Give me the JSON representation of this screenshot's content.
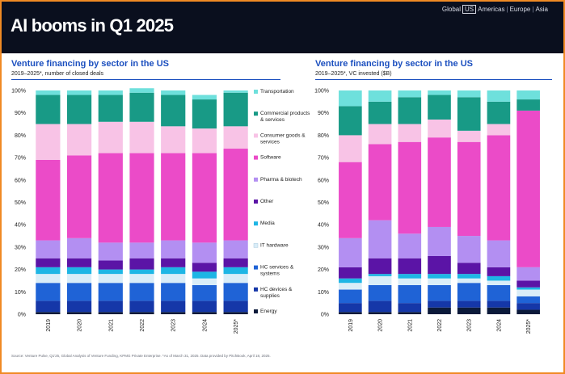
{
  "header": {
    "title": "AI booms in Q1 2025",
    "regions": [
      "Global",
      "US",
      "Americas",
      "Europe",
      "Asia"
    ],
    "selected_region": "US"
  },
  "left_panel": {
    "title": "Venture financing by sector in the US",
    "subtitle": "2019–2025*, number of closed deals"
  },
  "right_panel": {
    "title": "Venture financing by sector in the US",
    "subtitle": "2019–2025*, VC invested ($B)"
  },
  "source": "Source: Venture Pulse, Q1'25, Global Analysis of Venture Funding, KPMG Private Enterprise. *As of March 31, 2025. Data provided by PitchBook, April 18, 2025.",
  "chart_data": [
    {
      "type": "bar",
      "stacked": true,
      "title": "Venture financing by sector in the US",
      "subtitle": "2019–2025*, number of closed deals",
      "categories": [
        "2019",
        "2020",
        "2021",
        "2022",
        "2023",
        "2024",
        "2025*"
      ],
      "ylim": [
        0,
        100
      ],
      "yticks": [
        "0%",
        "10%",
        "20%",
        "30%",
        "40%",
        "50%",
        "60%",
        "70%",
        "80%",
        "90%",
        "100%"
      ],
      "legend_position": "right",
      "series": [
        {
          "name": "Energy",
          "color": "#0b1a3a",
          "values": [
            1,
            1,
            1,
            1,
            1,
            1,
            1
          ]
        },
        {
          "name": "HC devices & supplies",
          "color": "#1537a8",
          "values": [
            5,
            5,
            5,
            5,
            5,
            5,
            5
          ]
        },
        {
          "name": "HC services & systems",
          "color": "#1f63d6",
          "values": [
            8,
            8,
            8,
            8,
            8,
            7,
            8
          ]
        },
        {
          "name": "IT hardware",
          "color": "#d9edf8",
          "values": [
            4,
            4,
            4,
            4,
            4,
            3,
            4
          ]
        },
        {
          "name": "Media",
          "color": "#1eb6e5",
          "values": [
            3,
            3,
            2,
            2,
            3,
            3,
            3
          ]
        },
        {
          "name": "Other",
          "color": "#5b14a6",
          "values": [
            4,
            4,
            4,
            5,
            4,
            4,
            4
          ]
        },
        {
          "name": "Pharma & biotech",
          "color": "#b38ff2",
          "values": [
            8,
            9,
            8,
            7,
            8,
            9,
            8
          ]
        },
        {
          "name": "Software",
          "color": "#eb4bc8",
          "values": [
            36,
            37,
            40,
            40,
            39,
            40,
            41
          ]
        },
        {
          "name": "Consumer goods & services",
          "color": "#f8c3e6",
          "values": [
            16,
            14,
            14,
            14,
            12,
            11,
            10
          ]
        },
        {
          "name": "Commercial products & services",
          "color": "#189a86",
          "values": [
            13,
            13,
            12,
            13,
            14,
            13,
            15
          ]
        },
        {
          "name": "Transportation",
          "color": "#6ee0dc",
          "values": [
            2,
            2,
            2,
            2,
            2,
            2,
            1
          ]
        }
      ]
    },
    {
      "type": "bar",
      "stacked": true,
      "title": "Venture financing by sector in the US",
      "subtitle": "2019–2025*, VC invested ($B)",
      "categories": [
        "2019",
        "2020",
        "2021",
        "2022",
        "2023",
        "2024",
        "2025*"
      ],
      "ylim": [
        0,
        100
      ],
      "yticks": [
        "0%",
        "10%",
        "20%",
        "30%",
        "40%",
        "50%",
        "60%",
        "70%",
        "80%",
        "90%",
        "100%"
      ],
      "series": [
        {
          "name": "Energy",
          "color": "#0b1a3a",
          "values": [
            1,
            1,
            1,
            3,
            3,
            3,
            2
          ]
        },
        {
          "name": "HC devices & supplies",
          "color": "#1537a8",
          "values": [
            4,
            5,
            4,
            3,
            3,
            3,
            3
          ]
        },
        {
          "name": "HC services & systems",
          "color": "#1f63d6",
          "values": [
            6,
            7,
            8,
            7,
            8,
            7,
            3
          ]
        },
        {
          "name": "IT hardware",
          "color": "#d9edf8",
          "values": [
            3,
            4,
            3,
            3,
            2,
            2,
            3
          ]
        },
        {
          "name": "Media",
          "color": "#1eb6e5",
          "values": [
            2,
            1,
            2,
            2,
            2,
            2,
            1
          ]
        },
        {
          "name": "Other",
          "color": "#5b14a6",
          "values": [
            5,
            7,
            7,
            8,
            5,
            4,
            3
          ]
        },
        {
          "name": "Pharma & biotech",
          "color": "#b38ff2",
          "values": [
            13,
            17,
            11,
            13,
            12,
            12,
            6
          ]
        },
        {
          "name": "Software",
          "color": "#eb4bc8",
          "values": [
            34,
            34,
            41,
            40,
            42,
            47,
            70
          ]
        },
        {
          "name": "Consumer goods & services",
          "color": "#f8c3e6",
          "values": [
            12,
            9,
            8,
            8,
            5,
            5,
            0
          ]
        },
        {
          "name": "Commercial products & services",
          "color": "#189a86",
          "values": [
            13,
            10,
            12,
            11,
            15,
            10,
            5
          ]
        },
        {
          "name": "Transportation",
          "color": "#6ee0dc",
          "values": [
            7,
            5,
            3,
            2,
            3,
            5,
            4
          ]
        }
      ]
    }
  ],
  "legend": {
    "items": [
      {
        "label": "Transportation",
        "color": "#6ee0dc"
      },
      {
        "label": "Commercial products & services",
        "color": "#189a86"
      },
      {
        "label": "Consumer goods & services",
        "color": "#f8c3e6"
      },
      {
        "label": "Software",
        "color": "#eb4bc8"
      },
      {
        "label": "Pharma & biotech",
        "color": "#b38ff2"
      },
      {
        "label": "Other",
        "color": "#5b14a6"
      },
      {
        "label": "Media",
        "color": "#1eb6e5"
      },
      {
        "label": "IT hardware",
        "color": "#d9edf8"
      },
      {
        "label": "HC services & systems",
        "color": "#1f63d6"
      },
      {
        "label": "HC devices & supplies",
        "color": "#1537a8"
      },
      {
        "label": "Energy",
        "color": "#0b1a3a"
      }
    ]
  }
}
